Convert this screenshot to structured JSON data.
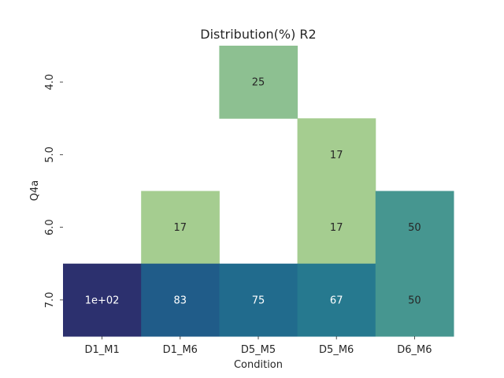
{
  "chart_data": {
    "type": "heatmap",
    "title": "Distribution(%) R2",
    "xlabel": "Condition",
    "ylabel": "Q4a",
    "x_categories": [
      "D1_M1",
      "D1_M6",
      "D5_M5",
      "D5_M6",
      "D6_M6"
    ],
    "y_categories": [
      "4.0",
      "5.0",
      "6.0",
      "7.0"
    ],
    "values": [
      [
        null,
        null,
        25,
        null,
        null
      ],
      [
        null,
        null,
        null,
        17,
        null
      ],
      [
        null,
        17,
        null,
        17,
        50
      ],
      [
        100,
        83,
        75,
        67,
        50
      ]
    ],
    "value_labels": [
      [
        "",
        "",
        "25",
        "",
        ""
      ],
      [
        "",
        "",
        "",
        "17",
        ""
      ],
      [
        "",
        "17",
        "",
        "17",
        "50"
      ],
      [
        "1e+02",
        "83",
        "75",
        "67",
        "50"
      ]
    ],
    "colormap": "crest",
    "colorbar": false,
    "grid": false
  }
}
